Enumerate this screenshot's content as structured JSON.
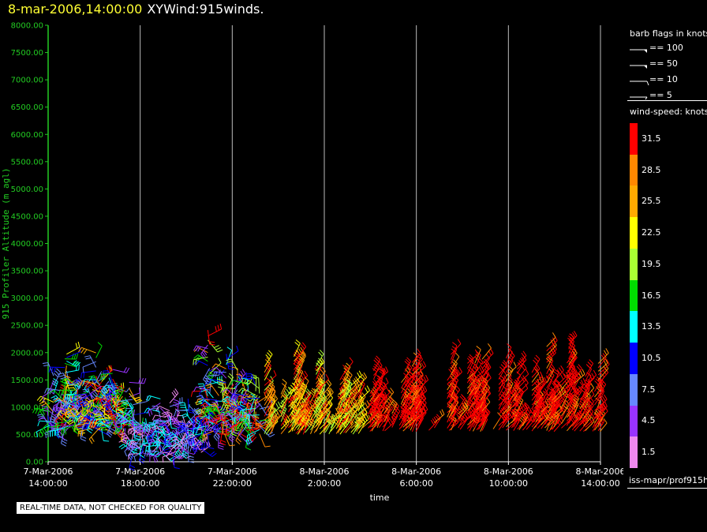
{
  "header": {
    "datetime": "8-mar-2006,14:00:00",
    "name": "XYWind:915winds."
  },
  "notice": "REAL-TIME DATA, NOT CHECKED FOR QUALITY",
  "footer": "iss-mapr/prof915h",
  "colors": {
    "y_axis": "#22cc22",
    "grid": "#bbbbbb",
    "x_axis": "#ffffff"
  },
  "legend": {
    "barb_title": "barb flags in knots",
    "barbs": [
      {
        "label": "== 100",
        "kind": "flag"
      },
      {
        "label": "== 50",
        "kind": "flag"
      },
      {
        "label": "== 10",
        "kind": "full"
      },
      {
        "label": "== 5",
        "kind": "half"
      }
    ],
    "speed_title": "wind-speed: knots",
    "speed_bins": [
      {
        "label": "31.5",
        "color": "#ff0000"
      },
      {
        "label": "28.5",
        "color": "#ff8800"
      },
      {
        "label": "25.5",
        "color": "#ffaa00"
      },
      {
        "label": "22.5",
        "color": "#ffff00"
      },
      {
        "label": "19.5",
        "color": "#aaff33"
      },
      {
        "label": "16.5",
        "color": "#00dd00"
      },
      {
        "label": "13.5",
        "color": "#00ffff"
      },
      {
        "label": "10.5",
        "color": "#0000ff"
      },
      {
        "label": "7.5",
        "color": "#6688ff"
      },
      {
        "label": "4.5",
        "color": "#9933ff"
      },
      {
        "label": "1.5",
        "color": "#ee88ee"
      }
    ]
  },
  "chart_data": {
    "type": "scatter",
    "title": "8-mar-2006,14:00:00 XYWind:915winds.",
    "xlabel": "time",
    "ylabel": "915 Profiler Altitude (m agl)",
    "ylim": [
      0,
      8000
    ],
    "xlim_hours": [
      0,
      24
    ],
    "y_ticks": [
      "0.00",
      "500.00",
      "1000.00",
      "1500.00",
      "2000.00",
      "2500.00",
      "3000.00",
      "3500.00",
      "4000.00",
      "4500.00",
      "5000.00",
      "5500.00",
      "6000.00",
      "6500.00",
      "7000.00",
      "7500.00",
      "8000.00"
    ],
    "x_ticks": [
      {
        "date": "7-Mar-2006",
        "time": "14:00:00"
      },
      {
        "date": "7-Mar-2006",
        "time": "18:00:00"
      },
      {
        "date": "7-Mar-2006",
        "time": "22:00:00"
      },
      {
        "date": "8-Mar-2006",
        "time": "2:00:00"
      },
      {
        "date": "8-Mar-2006",
        "time": "6:00:00"
      },
      {
        "date": "8-Mar-2006",
        "time": "10:00:00"
      },
      {
        "date": "8-Mar-2006",
        "time": "14:00:00"
      }
    ],
    "grid": "vertical",
    "legend": "right",
    "segments": [
      {
        "t0": 0.0,
        "t1": 3.6,
        "alt": [
          600,
          2200
        ],
        "speed": "mixed-low"
      },
      {
        "t0": 3.6,
        "t1": 6.7,
        "alt": [
          150,
          1400
        ],
        "speed": "low"
      },
      {
        "t0": 6.7,
        "t1": 9.4,
        "alt": [
          500,
          2600
        ],
        "speed": "mixed"
      },
      {
        "t0": 9.4,
        "t1": 13.5,
        "alt": [
          500,
          2300
        ],
        "speed": "medium-high"
      },
      {
        "t0": 13.5,
        "t1": 24.0,
        "alt": [
          550,
          2400
        ],
        "speed": "high"
      }
    ]
  }
}
